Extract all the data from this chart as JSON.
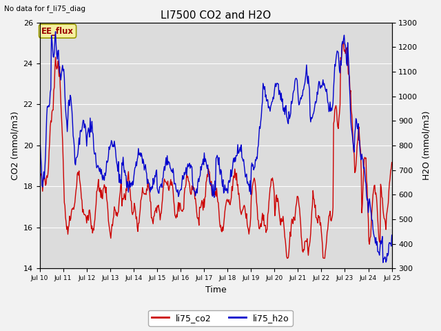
{
  "title": "LI7500 CO2 and H2O",
  "top_left_text": "No data for f_li75_diag",
  "xlabel": "Time",
  "ylabel_left": "CO2 (mmol/m3)",
  "ylabel_right": "H2O (mmol/m3)",
  "ylim_left": [
    14,
    26
  ],
  "ylim_right": [
    300,
    1300
  ],
  "yticks_left": [
    14,
    16,
    18,
    20,
    22,
    24,
    26
  ],
  "yticks_right": [
    300,
    400,
    500,
    600,
    700,
    800,
    900,
    1000,
    1100,
    1200,
    1300
  ],
  "xtick_labels": [
    "Jul 10",
    "Jul 11",
    "Jul 12",
    "Jul 13",
    "Jul 14",
    "Jul 15",
    "Jul 16",
    "Jul 17",
    "Jul 18",
    "Jul 19",
    "Jul 20",
    "Jul 21",
    "Jul 22",
    "Jul 23",
    "Jul 24",
    "Jul 25"
  ],
  "color_co2": "#cc0000",
  "color_h2o": "#0000cc",
  "legend_co2": "li75_co2",
  "legend_h2o": "li75_h2o",
  "annotation_text": "EE_flux",
  "background_color": "#dcdcdc",
  "plot_bg_color": "#dcdcdc",
  "linewidth": 1.0,
  "title_fontsize": 11,
  "label_fontsize": 9,
  "tick_fontsize": 8
}
